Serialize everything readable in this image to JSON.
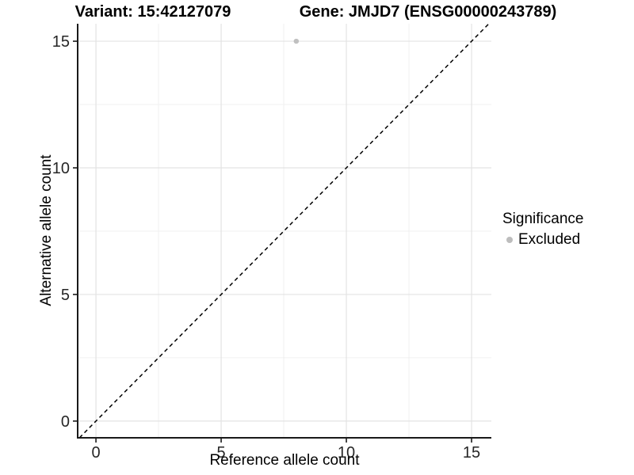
{
  "title": {
    "left": "Variant: 15:42127079",
    "right": "Gene: JMJD7 (ENSG00000243789)"
  },
  "chart_data": {
    "type": "scatter",
    "title": "Variant: 15:42127079   Gene: JMJD7 (ENSG00000243789)",
    "xlabel": "Reference allele count",
    "ylabel": "Alternative allele count",
    "xlim": [
      -0.73,
      15.79
    ],
    "ylim": [
      -0.66,
      15.69
    ],
    "x_ticks": [
      0,
      5,
      10,
      15
    ],
    "y_ticks": [
      0,
      5,
      10,
      15
    ],
    "x_minor_ticks": [
      2.5,
      7.5,
      12.5
    ],
    "y_minor_ticks": [
      2.5,
      7.5,
      12.5
    ],
    "grid": "major and minor, light grey on white",
    "series": [
      {
        "name": "Excluded",
        "color": "#c0c0c0",
        "points": [
          {
            "x": 8,
            "y": 15
          }
        ]
      }
    ],
    "reference_line": {
      "kind": "identity y=x",
      "style": "dashed",
      "color": "#000000"
    },
    "legend": {
      "title": "Significance",
      "position": "right",
      "items": [
        {
          "label": "Excluded",
          "color": "#bdbdbd",
          "marker": "circle"
        }
      ]
    }
  },
  "colors": {
    "background": "#ffffff",
    "grid_major": "#e3e3e3",
    "grid_minor": "#f0f0f0",
    "axis_line": "#1a1a1a",
    "tick_text": "#262626",
    "point": "#c0c0c0"
  }
}
